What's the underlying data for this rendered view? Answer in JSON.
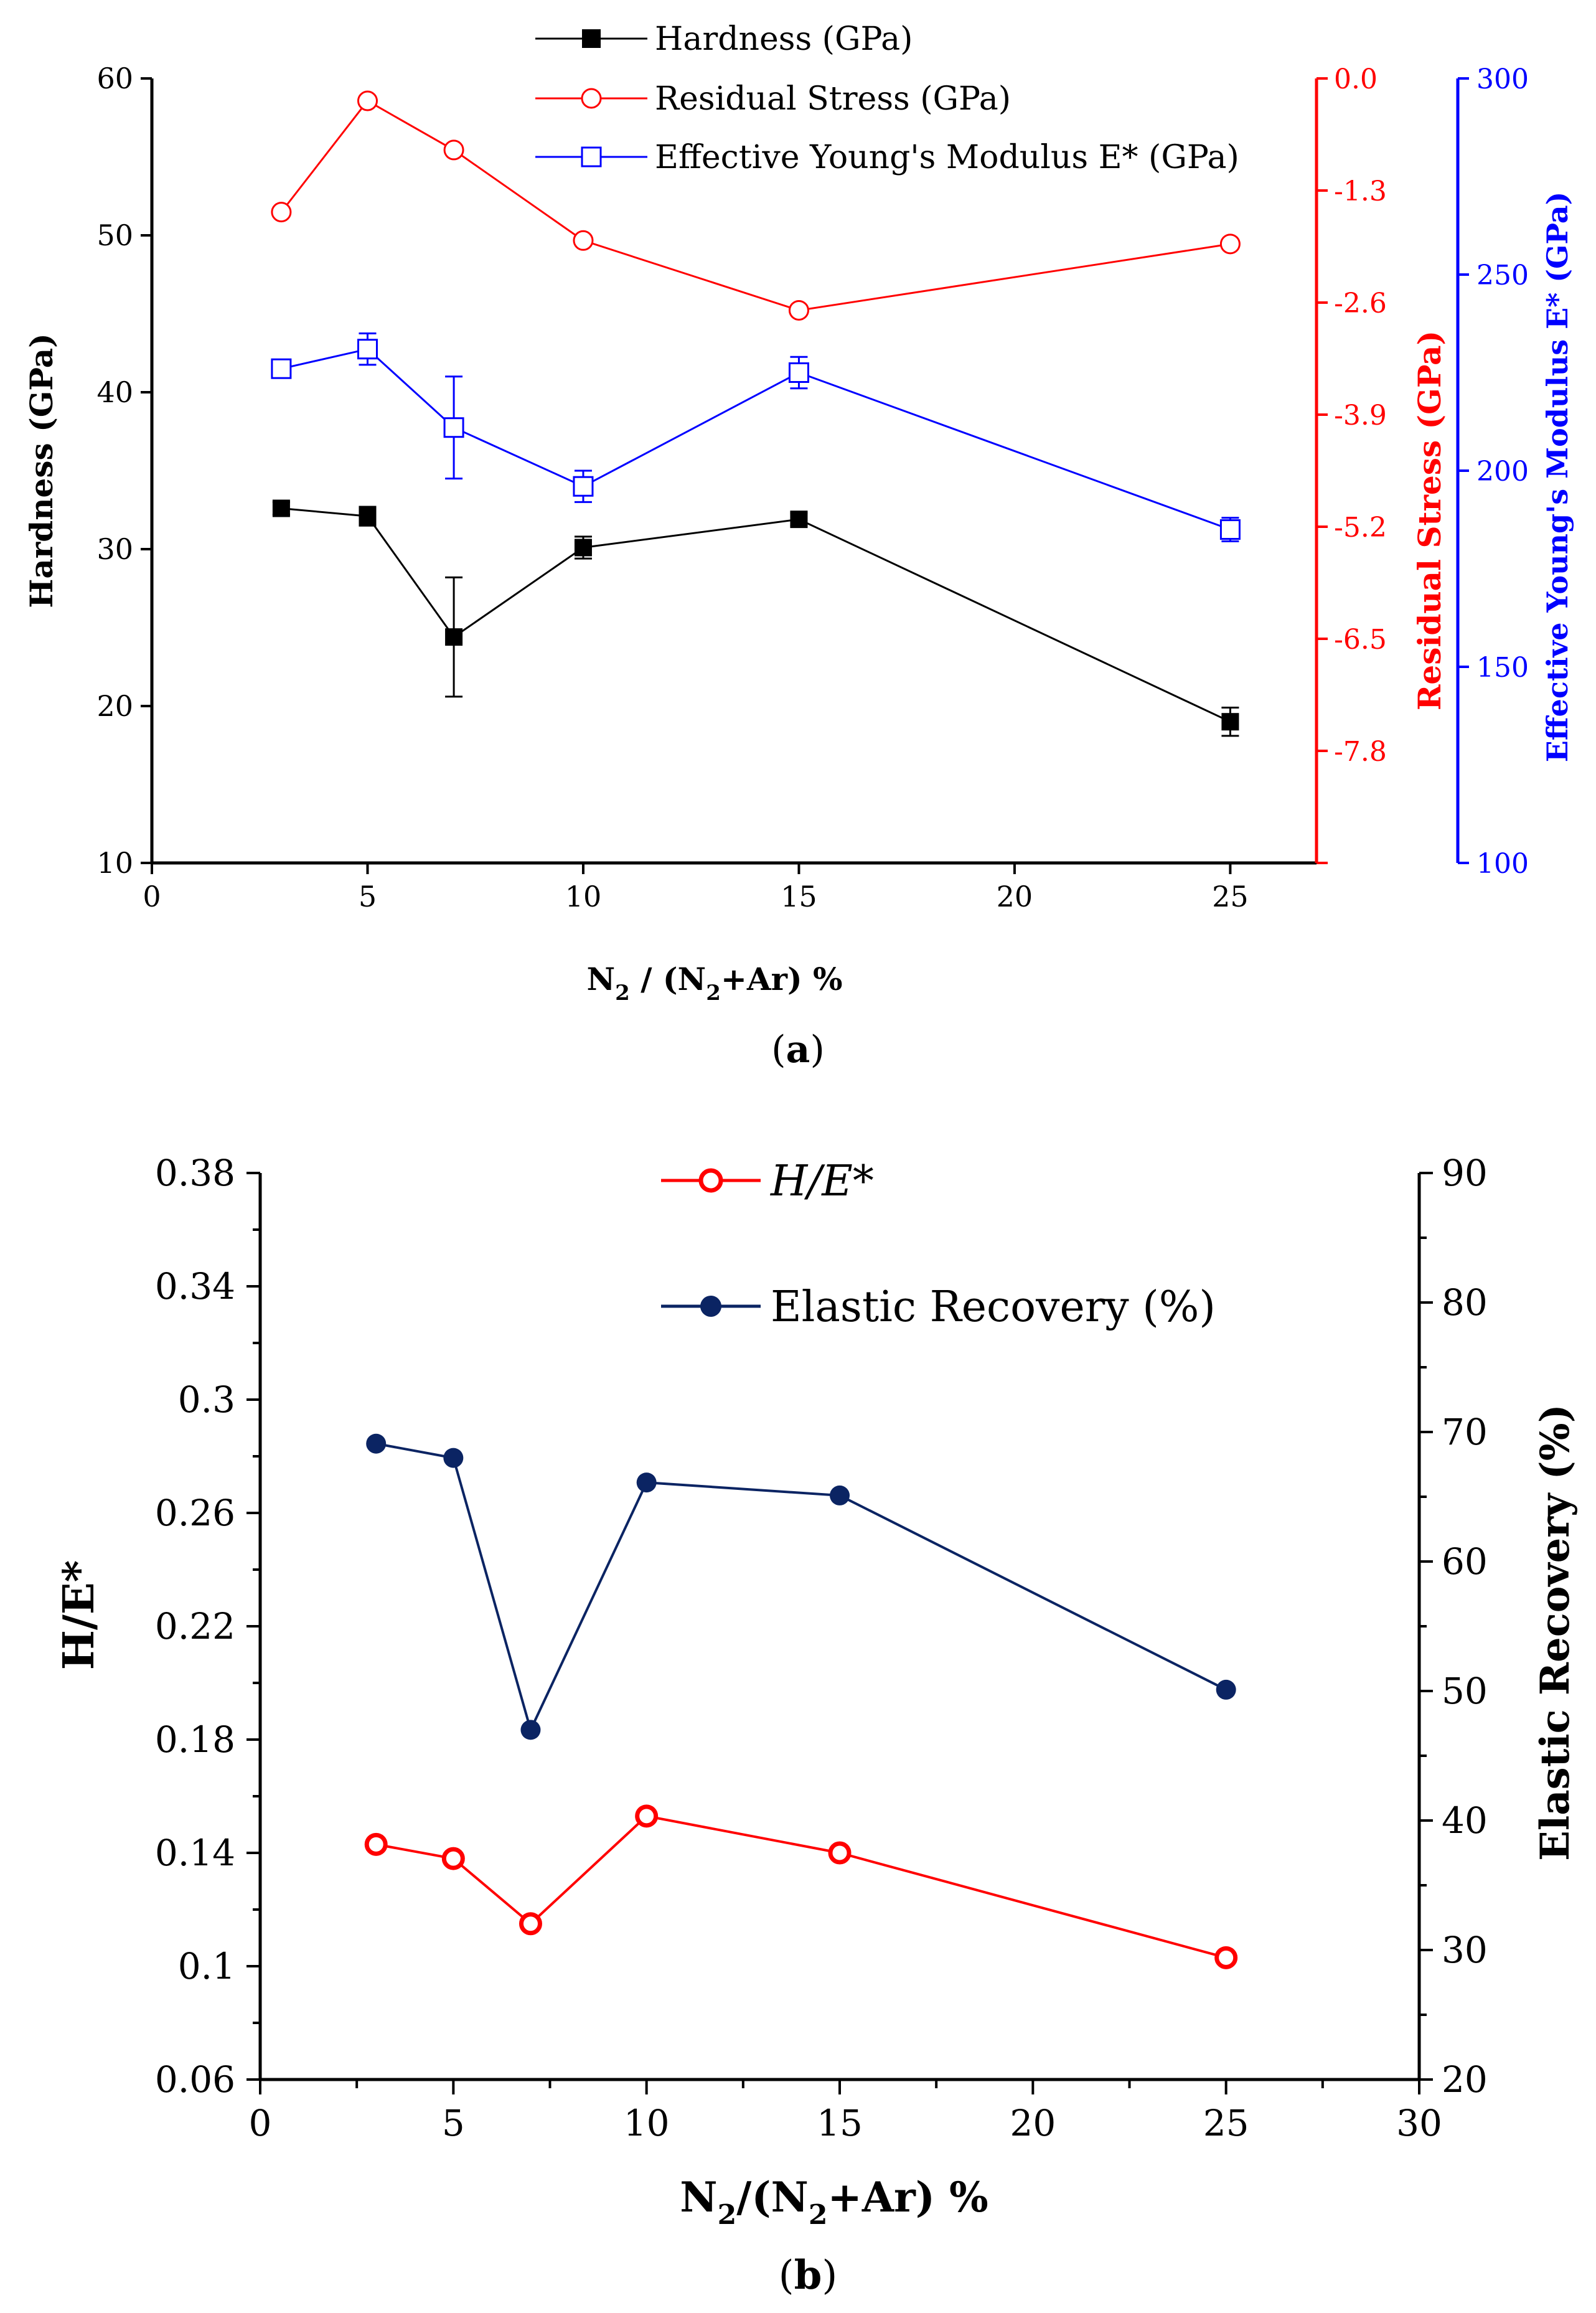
{
  "chart_data": [
    {
      "type": "line",
      "panel_label": "a",
      "xlabel": {
        "main": "N",
        "sub": "2",
        "mid": " / (N",
        "sub2": "2",
        "end": "+Ar) %"
      },
      "xlim": [
        0,
        27
      ],
      "xticks": [
        0,
        5,
        10,
        15,
        20,
        25
      ],
      "axes": {
        "left": {
          "label": "Hardness (GPa)",
          "lim": [
            10,
            60
          ],
          "ticks": [
            10,
            20,
            30,
            40,
            50,
            60
          ],
          "color": "#000000"
        },
        "right1": {
          "label": "Residual Stress (GPa)",
          "lim": [
            -9.1,
            0
          ],
          "ticks": [
            "0.0",
            "-1.3",
            "-2.6",
            "-3.9",
            "-5.2",
            "-6.5",
            "-7.8"
          ],
          "tick_values": [
            0,
            -1.3,
            -2.6,
            -3.9,
            -5.2,
            -6.5,
            -7.8
          ],
          "color": "#ff0000"
        },
        "right2": {
          "label": "Effective Young's Modulus E* (GPa)",
          "lim": [
            100,
            300
          ],
          "ticks": [
            100,
            150,
            200,
            250,
            300
          ],
          "color": "#0000ff"
        }
      },
      "series": [
        {
          "name": "Hardness (GPa)",
          "axis": "left",
          "color": "#000000",
          "marker": "filled-square",
          "x": [
            3,
            5,
            7,
            10,
            15,
            25
          ],
          "values": [
            32.6,
            32.1,
            24.4,
            30.1,
            31.9,
            19.0
          ],
          "errors": [
            0.4,
            0.6,
            3.8,
            0.7,
            0.4,
            0.9
          ]
        },
        {
          "name": "Residual Stress (GPa)",
          "axis": "right1",
          "color": "#ff0000",
          "marker": "open-circle",
          "x": [
            3,
            5,
            7,
            10,
            15,
            25
          ],
          "values": [
            -1.55,
            -0.26,
            -0.83,
            -1.88,
            -2.69,
            -1.92
          ]
        },
        {
          "name": "Effective Young's Modulus E* (GPa)",
          "axis": "right2",
          "color": "#0000ff",
          "marker": "open-square",
          "x": [
            3,
            5,
            7,
            10,
            15,
            25
          ],
          "values": [
            226,
            231,
            211,
            196,
            225,
            185
          ],
          "errors": [
            1.5,
            4,
            13,
            4,
            4,
            3
          ]
        }
      ]
    },
    {
      "type": "line",
      "panel_label": "b",
      "xlabel": {
        "main": "N",
        "sub": "2",
        "mid": "/(N",
        "sub2": "2",
        "end": "+Ar) %"
      },
      "xlim": [
        0,
        30
      ],
      "xticks": [
        0,
        5,
        10,
        15,
        20,
        25,
        30
      ],
      "axes": {
        "left": {
          "label": "H/E*",
          "lim": [
            0.06,
            0.38
          ],
          "ticks": [
            "0.06",
            "0.1",
            "0.14",
            "0.18",
            "0.22",
            "0.26",
            "0.3",
            "0.34",
            "0.38"
          ],
          "tick_values": [
            0.06,
            0.1,
            0.14,
            0.18,
            0.22,
            0.26,
            0.3,
            0.34,
            0.38
          ]
        },
        "right": {
          "label": "Elastic Recovery (%)",
          "lim": [
            20,
            90
          ],
          "ticks": [
            20,
            30,
            40,
            50,
            60,
            70,
            80,
            90
          ]
        }
      },
      "series": [
        {
          "name": "H/E*",
          "legend_text": "H/E*",
          "axis": "left",
          "color": "#ff0000",
          "marker": "open-circle",
          "x": [
            3,
            5,
            7,
            10,
            15,
            25
          ],
          "values": [
            0.143,
            0.138,
            0.115,
            0.153,
            0.14,
            0.103
          ]
        },
        {
          "name": "Elastic Recovery (%)",
          "axis": "right",
          "color": "#0b2463",
          "marker": "filled-circle",
          "x": [
            3,
            5,
            7,
            10,
            15,
            25
          ],
          "values": [
            69.1,
            68.0,
            47.0,
            66.1,
            65.1,
            50.1
          ]
        }
      ]
    }
  ]
}
